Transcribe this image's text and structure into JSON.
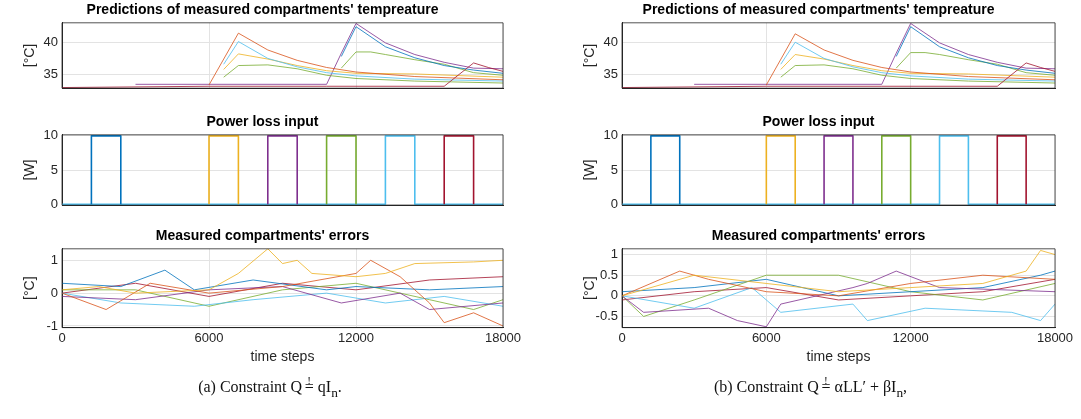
{
  "chart_data": [
    {
      "type": "line",
      "title": "Predictions of measured compartments' tempreature",
      "ylabel": "[°C]",
      "xlim": [
        0,
        18000
      ],
      "ylim": [
        32.9,
        43
      ],
      "xticks": [
        {
          "value": 0,
          "label": null
        },
        {
          "value": 6000,
          "label": null
        },
        {
          "value": 12000,
          "label": null
        },
        {
          "value": 18000,
          "label": null
        }
      ],
      "yticks": [
        35,
        40
      ],
      "grid": true,
      "tick_labels": "y",
      "series": [
        {
          "color": "#a2142f",
          "x": [
            0,
            6000,
            10800,
            15600,
            16800,
            17400,
            18000
          ],
          "values": [
            33,
            33.2,
            33.2,
            33.2,
            36.8,
            36.1,
            35.5
          ]
        },
        {
          "color": "#d95319",
          "x": [
            6000,
            7200,
            8400,
            9600,
            10800,
            12000,
            14400,
            18000
          ],
          "values": [
            33.4,
            41.4,
            38.8,
            37.2,
            36.1,
            35.4,
            34.7,
            34.2
          ]
        },
        {
          "color": "#4dbeee",
          "x": [
            6600,
            7200,
            8400,
            9600,
            10800,
            12000,
            14400,
            18000
          ],
          "values": [
            36.6,
            40.1,
            37.5,
            36.2,
            35.3,
            34.8,
            34.3,
            34.0
          ]
        },
        {
          "color": "#edb120",
          "x": [
            6600,
            7200,
            8400,
            9600,
            10800,
            12000,
            14400,
            18000
          ],
          "values": [
            35.8,
            38.2,
            37.4,
            36.4,
            35.6,
            35.2,
            35.1,
            34.6
          ]
        },
        {
          "color": "#77ac30",
          "x": [
            6600,
            7200,
            8400,
            9600,
            10800,
            12000,
            14400,
            18000
          ],
          "values": [
            34.6,
            36.4,
            36.5,
            35.9,
            34.9,
            34.4,
            34.0,
            33.7
          ]
        },
        {
          "color": "#7e2f8e",
          "x": [
            3000,
            10800,
            11400,
            12000,
            13200,
            14400,
            15600,
            16800,
            18000
          ],
          "values": [
            33.5,
            33.5,
            38.3,
            42.9,
            39.9,
            38.1,
            36.9,
            36.0,
            35.9
          ]
        },
        {
          "color": "#0072bd",
          "x": [
            11400,
            12000,
            13200,
            14400,
            15600,
            16800,
            18000
          ],
          "values": [
            37.8,
            42.4,
            39.3,
            37.6,
            36.4,
            35.7,
            35.2
          ]
        },
        {
          "color": "#77ac30",
          "x": [
            11400,
            12000,
            12600,
            13200,
            14400,
            15600,
            16800,
            18000
          ],
          "values": [
            36.0,
            38.5,
            38.5,
            38.1,
            37.3,
            36.6,
            35.3,
            34.9
          ]
        }
      ]
    },
    {
      "type": "step",
      "title": "Power loss input",
      "ylabel": "[W]",
      "xlim": [
        0,
        18000
      ],
      "ylim": [
        -0.15,
        10.15
      ],
      "xticks": [
        {
          "value": 0,
          "label": null
        },
        {
          "value": 6000,
          "label": null
        },
        {
          "value": 12000,
          "label": null
        },
        {
          "value": 18000,
          "label": null
        }
      ],
      "yticks": [
        0,
        5,
        10
      ],
      "grid": true,
      "tick_labels": "y",
      "series": [
        {
          "color": "#0072bd",
          "x": [
            1200,
            1200,
            2400
          ],
          "values": [
            0,
            10,
            0
          ]
        },
        {
          "color": "#edb120",
          "x": [
            6000,
            6000,
            7200
          ],
          "values": [
            0,
            10,
            0
          ]
        },
        {
          "color": "#7e2f8e",
          "x": [
            8400,
            8400,
            9600
          ],
          "values": [
            0,
            10,
            0
          ]
        },
        {
          "color": "#77ac30",
          "x": [
            10800,
            10800,
            12000
          ],
          "values": [
            0,
            10,
            0
          ]
        },
        {
          "color": "#a2142f",
          "x": [
            15600,
            15600,
            16800
          ],
          "values": [
            0,
            10,
            0
          ]
        },
        {
          "color": "#4dbeee",
          "x": [
            0,
            13200,
            13200,
            14400,
            18000
          ],
          "values": [
            0,
            0,
            10,
            0,
            0
          ]
        }
      ]
    },
    {
      "type": "line",
      "title": "Measured compartments' errors",
      "xlabel": "time steps",
      "ylabel": "[°C]",
      "xlim": [
        0,
        18000
      ],
      "ylim": [
        -1.05,
        1.35
      ],
      "xticks": [
        0,
        6000,
        12000,
        18000
      ],
      "yticks": [
        -1,
        0,
        1
      ],
      "grid": true,
      "annotations": [
        "(a) Constraint Q $^{!}$= qI$_{n}$."
      ],
      "series": [
        {
          "color": "#edb120",
          "x": [
            0,
            1500,
            3000,
            6000,
            7200,
            8400,
            9000,
            9600,
            10200,
            12000,
            13200,
            14400,
            16800,
            18000
          ],
          "values": [
            0.1,
            0.2,
            0,
            0.1,
            0.6,
            1.35,
            0.9,
            1.0,
            0.6,
            0.5,
            0.6,
            0.9,
            0.95,
            1.0
          ]
        },
        {
          "color": "#d95319",
          "x": [
            0,
            1800,
            3600,
            6000,
            9000,
            12000,
            12600,
            13800,
            15000,
            15600,
            16800,
            18000
          ],
          "values": [
            0,
            -0.5,
            0.3,
            0,
            0.2,
            0.6,
            1.0,
            0.5,
            -0.3,
            -0.9,
            -0.6,
            -1.0
          ]
        },
        {
          "color": "#0072bd",
          "x": [
            0,
            2400,
            4200,
            5400,
            7800,
            10800,
            12000,
            15000,
            18000
          ],
          "values": [
            0.3,
            0.2,
            0.7,
            0.1,
            0.4,
            0.1,
            0.2,
            0.1,
            0.2
          ]
        },
        {
          "color": "#7e2f8e",
          "x": [
            0,
            3000,
            6000,
            9000,
            11400,
            13800,
            15000,
            18000
          ],
          "values": [
            -0.1,
            -0.2,
            0.1,
            0.2,
            -0.3,
            0,
            -0.5,
            -0.3
          ]
        },
        {
          "color": "#4dbeee",
          "x": [
            0,
            2400,
            5400,
            7800,
            10800,
            13200,
            15600,
            18000
          ],
          "values": [
            0,
            -0.3,
            -0.4,
            -0.2,
            0,
            -0.3,
            -0.1,
            -0.4
          ]
        },
        {
          "color": "#77ac30",
          "x": [
            0,
            3000,
            6000,
            9000,
            12000,
            15000,
            16800,
            18000
          ],
          "values": [
            0.1,
            0.1,
            -0.4,
            0.1,
            0.3,
            -0.2,
            -0.5,
            -0.2
          ]
        },
        {
          "color": "#a2142f",
          "x": [
            0,
            3000,
            6000,
            9000,
            12000,
            15000,
            18000
          ],
          "values": [
            0,
            0.3,
            -0.1,
            0.3,
            0.1,
            0.4,
            0.5
          ]
        }
      ]
    },
    {
      "type": "line",
      "title": "Predictions of measured compartments' tempreature",
      "ylabel": "[°C]",
      "xlim": [
        0,
        18000
      ],
      "ylim": [
        32.9,
        43
      ],
      "xticks": [
        {
          "value": 0,
          "label": null
        },
        {
          "value": 6000,
          "label": null
        },
        {
          "value": 12000,
          "label": null
        },
        {
          "value": 18000,
          "label": null
        }
      ],
      "yticks": [
        35,
        40
      ],
      "grid": true,
      "tick_labels": "y",
      "series": [
        {
          "color": "#a2142f",
          "x": [
            0,
            6000,
            10800,
            15600,
            16800,
            17400,
            18000
          ],
          "values": [
            33,
            33.2,
            33.2,
            33.2,
            36.8,
            36.1,
            35.5
          ]
        },
        {
          "color": "#d95319",
          "x": [
            6000,
            7200,
            8400,
            9600,
            10800,
            12000,
            14400,
            18000
          ],
          "values": [
            33.4,
            41.3,
            38.8,
            37.2,
            36.1,
            35.4,
            34.7,
            34.2
          ]
        },
        {
          "color": "#4dbeee",
          "x": [
            6600,
            7200,
            8400,
            9600,
            10800,
            12000,
            14400,
            18000
          ],
          "values": [
            36.6,
            40.0,
            37.5,
            36.2,
            35.3,
            34.8,
            34.3,
            34.0
          ]
        },
        {
          "color": "#edb120",
          "x": [
            6600,
            7200,
            8400,
            9600,
            10800,
            12000,
            14400,
            18000
          ],
          "values": [
            35.8,
            38.1,
            37.4,
            36.4,
            35.6,
            35.2,
            35.1,
            34.6
          ]
        },
        {
          "color": "#77ac30",
          "x": [
            6600,
            7200,
            8400,
            9600,
            10800,
            12000,
            14400,
            18000
          ],
          "values": [
            34.6,
            36.4,
            36.5,
            35.9,
            34.9,
            34.4,
            34.0,
            33.7
          ]
        },
        {
          "color": "#7e2f8e",
          "x": [
            3000,
            10800,
            11400,
            12000,
            13200,
            14400,
            15600,
            16800,
            18000
          ],
          "values": [
            33.5,
            33.5,
            38.3,
            42.9,
            39.9,
            38.1,
            36.9,
            36.0,
            35.9
          ]
        },
        {
          "color": "#0072bd",
          "x": [
            11400,
            12000,
            13200,
            14400,
            15600,
            16800,
            18000
          ],
          "values": [
            37.8,
            42.4,
            39.3,
            37.6,
            36.4,
            35.7,
            35.2
          ]
        },
        {
          "color": "#77ac30",
          "x": [
            11400,
            12000,
            12600,
            13200,
            14400,
            15600,
            16800,
            18000
          ],
          "values": [
            36.0,
            38.4,
            38.4,
            38.1,
            37.3,
            36.6,
            35.3,
            34.9
          ]
        }
      ]
    },
    {
      "type": "step",
      "title": "Power loss input",
      "ylabel": "[W]",
      "xlim": [
        0,
        18000
      ],
      "ylim": [
        -0.15,
        10.15
      ],
      "xticks": [
        {
          "value": 0,
          "label": null
        },
        {
          "value": 6000,
          "label": null
        },
        {
          "value": 12000,
          "label": null
        },
        {
          "value": 18000,
          "label": null
        }
      ],
      "yticks": [
        0,
        5,
        10
      ],
      "grid": true,
      "tick_labels": "y",
      "series": [
        {
          "color": "#0072bd",
          "x": [
            1200,
            1200,
            2400
          ],
          "values": [
            0,
            10,
            0
          ]
        },
        {
          "color": "#edb120",
          "x": [
            6000,
            6000,
            7200
          ],
          "values": [
            0,
            10,
            0
          ]
        },
        {
          "color": "#7e2f8e",
          "x": [
            8400,
            8400,
            9600
          ],
          "values": [
            0,
            10,
            0
          ]
        },
        {
          "color": "#77ac30",
          "x": [
            10800,
            10800,
            12000
          ],
          "values": [
            0,
            10,
            0
          ]
        },
        {
          "color": "#a2142f",
          "x": [
            15600,
            15600,
            16800
          ],
          "values": [
            0,
            10,
            0
          ]
        },
        {
          "color": "#4dbeee",
          "x": [
            0,
            13200,
            13200,
            14400,
            18000
          ],
          "values": [
            0,
            0,
            10,
            0,
            0
          ]
        }
      ]
    },
    {
      "type": "line",
      "title": "Measured compartments' errors",
      "xlabel": "time steps",
      "ylabel": "[°C]",
      "xlim": [
        0,
        18000
      ],
      "ylim": [
        -0.77,
        1.14
      ],
      "xticks": [
        0,
        6000,
        12000,
        18000
      ],
      "yticks": [
        -0.5,
        0,
        0.5,
        1
      ],
      "grid": true,
      "annotations": [
        "(b) Constraint Q $^{!}$= αLL′ + βI$_{n}$,"
      ],
      "series": [
        {
          "color": "#edb120",
          "x": [
            0,
            3000,
            6000,
            9000,
            12000,
            15000,
            16800,
            17400,
            18000
          ],
          "values": [
            0,
            0.5,
            0.3,
            0.1,
            0.2,
            0.3,
            0.6,
            1.1,
            1.0
          ]
        },
        {
          "color": "#d95319",
          "x": [
            0,
            2400,
            3600,
            6000,
            9000,
            12000,
            15000,
            18000
          ],
          "values": [
            0,
            0.6,
            0.4,
            0.1,
            0,
            0.3,
            0.5,
            0.4
          ]
        },
        {
          "color": "#7e2f8e",
          "x": [
            0,
            900,
            3600,
            4800,
            6000,
            6600,
            9600,
            10200,
            11400,
            13200,
            18000
          ],
          "values": [
            0,
            -0.4,
            -0.3,
            -0.6,
            -0.75,
            -0.2,
            0.2,
            0.3,
            0.6,
            0.2,
            0.1
          ]
        },
        {
          "color": "#0072bd",
          "x": [
            0,
            3000,
            6000,
            9000,
            12000,
            15000,
            17400,
            18000
          ],
          "values": [
            0.1,
            0.2,
            0.4,
            0,
            0.1,
            0.2,
            0.5,
            0.6
          ]
        },
        {
          "color": "#4dbeee",
          "x": [
            0,
            3000,
            5400,
            6600,
            9600,
            10200,
            12600,
            16200,
            17400,
            18000
          ],
          "values": [
            0,
            -0.3,
            0.2,
            -0.4,
            -0.2,
            -0.6,
            -0.3,
            -0.4,
            -0.6,
            -0.2
          ]
        },
        {
          "color": "#77ac30",
          "x": [
            0,
            900,
            3000,
            6000,
            9000,
            12000,
            15000,
            18000
          ],
          "values": [
            0,
            -0.5,
            -0.1,
            0.5,
            0.5,
            0.1,
            -0.1,
            0.3
          ]
        },
        {
          "color": "#a2142f",
          "x": [
            0,
            3000,
            6000,
            9000,
            12000,
            15000,
            18000
          ],
          "values": [
            -0.1,
            0.1,
            0.2,
            -0.1,
            0,
            0.1,
            0.4
          ]
        }
      ]
    }
  ]
}
